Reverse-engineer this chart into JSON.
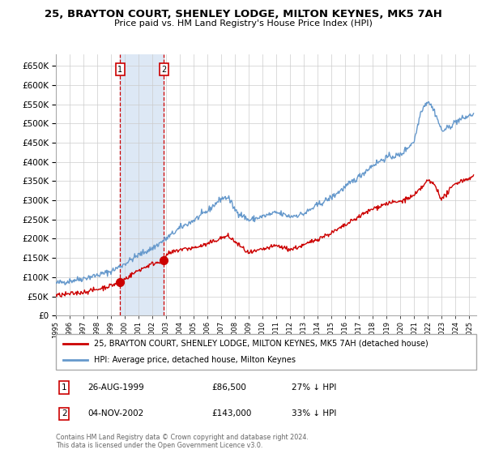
{
  "title": "25, BRAYTON COURT, SHENLEY LODGE, MILTON KEYNES, MK5 7AH",
  "subtitle": "Price paid vs. HM Land Registry's House Price Index (HPI)",
  "legend_line1": "25, BRAYTON COURT, SHENLEY LODGE, MILTON KEYNES, MK5 7AH (detached house)",
  "legend_line2": "HPI: Average price, detached house, Milton Keynes",
  "transaction1_date": "26-AUG-1999",
  "transaction1_price": "£86,500",
  "transaction1_hpi": "27% ↓ HPI",
  "transaction2_date": "04-NOV-2002",
  "transaction2_price": "£143,000",
  "transaction2_hpi": "33% ↓ HPI",
  "footer": "Contains HM Land Registry data © Crown copyright and database right 2024.\nThis data is licensed under the Open Government Licence v3.0.",
  "transaction1_year": 1999.65,
  "transaction2_year": 2002.84,
  "transaction1_price_val": 86500,
  "transaction2_price_val": 143000,
  "red_color": "#cc0000",
  "blue_color": "#6699cc",
  "shade_color": "#dde8f5",
  "grid_color": "#cccccc",
  "ylim_max": 680000,
  "xlim_start": 1995.0,
  "xlim_end": 2025.5
}
